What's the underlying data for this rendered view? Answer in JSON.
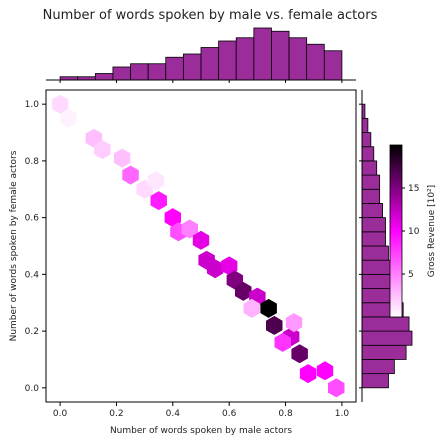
{
  "chart_data": {
    "type": "hexbin",
    "title": "Number of words spoken by male vs. female actors",
    "xlabel": "Number of words spoken by male actors",
    "ylabel": "Number of words spoken by female actors",
    "xlim": [
      -0.05,
      1.05
    ],
    "ylim": [
      -0.05,
      1.05
    ],
    "xticks": [
      "0.0",
      "0.2",
      "0.4",
      "0.6",
      "0.8",
      "1.0"
    ],
    "yticks": [
      "0.0",
      "0.2",
      "0.4",
      "0.6",
      "0.8",
      "1.0"
    ],
    "colorbar": {
      "label": "Gross Revenue [10²]",
      "range": [
        0,
        20
      ],
      "ticks": [
        "5",
        "10",
        "15"
      ]
    },
    "colors": {
      "bar": "#9b2d9b",
      "low": "#ffffff",
      "mid": "#ff00ff",
      "high": "#000000"
    },
    "hexbins": [
      {
        "x": 0.0,
        "y": 1.0,
        "value": 1.5
      },
      {
        "x": 0.03,
        "y": 0.95,
        "value": 0.5
      },
      {
        "x": 0.12,
        "y": 0.88,
        "value": 2.5
      },
      {
        "x": 0.15,
        "y": 0.84,
        "value": 2.0
      },
      {
        "x": 0.22,
        "y": 0.81,
        "value": 2.5
      },
      {
        "x": 0.25,
        "y": 0.75,
        "value": 6.0
      },
      {
        "x": 0.3,
        "y": 0.7,
        "value": 1.5
      },
      {
        "x": 0.34,
        "y": 0.73,
        "value": 1.0
      },
      {
        "x": 0.35,
        "y": 0.66,
        "value": 9.0
      },
      {
        "x": 0.4,
        "y": 0.6,
        "value": 10.0
      },
      {
        "x": 0.42,
        "y": 0.55,
        "value": 7.0
      },
      {
        "x": 0.46,
        "y": 0.56,
        "value": 5.0
      },
      {
        "x": 0.5,
        "y": 0.52,
        "value": 11.0
      },
      {
        "x": 0.52,
        "y": 0.45,
        "value": 12.0
      },
      {
        "x": 0.55,
        "y": 0.42,
        "value": 12.0
      },
      {
        "x": 0.6,
        "y": 0.43,
        "value": 11.0
      },
      {
        "x": 0.62,
        "y": 0.38,
        "value": 15.0
      },
      {
        "x": 0.65,
        "y": 0.34,
        "value": 16.0
      },
      {
        "x": 0.7,
        "y": 0.32,
        "value": 12.0
      },
      {
        "x": 0.68,
        "y": 0.28,
        "value": 3.0
      },
      {
        "x": 0.74,
        "y": 0.28,
        "value": 20.0
      },
      {
        "x": 0.76,
        "y": 0.22,
        "value": 17.0
      },
      {
        "x": 0.82,
        "y": 0.18,
        "value": 12.0
      },
      {
        "x": 0.79,
        "y": 0.16,
        "value": 8.0
      },
      {
        "x": 0.85,
        "y": 0.12,
        "value": 16.0
      },
      {
        "x": 0.88,
        "y": 0.05,
        "value": 10.0
      },
      {
        "x": 0.94,
        "y": 0.06,
        "value": 10.0
      },
      {
        "x": 0.98,
        "y": 0.0,
        "value": 7.0
      },
      {
        "x": 0.83,
        "y": 0.23,
        "value": 4.0
      }
    ],
    "top_histogram": {
      "bin_edges": [
        0.0,
        0.0625,
        0.125,
        0.1875,
        0.25,
        0.3125,
        0.375,
        0.4375,
        0.5,
        0.5625,
        0.625,
        0.6875,
        0.75,
        0.8125,
        0.875,
        0.9375,
        1.0
      ],
      "counts": [
        1,
        1,
        2,
        4,
        5,
        5,
        7,
        8,
        10,
        12,
        13,
        16,
        15,
        13,
        11,
        9
      ]
    },
    "right_histogram": {
      "bin_edges": [
        0.0,
        0.05,
        0.1,
        0.15,
        0.2,
        0.25,
        0.3,
        0.35,
        0.4,
        0.45,
        0.5,
        0.55,
        0.6,
        0.65,
        0.7,
        0.75,
        0.8,
        0.85,
        0.9,
        0.95,
        1.0
      ],
      "counts": [
        9,
        11,
        15,
        17,
        16,
        14,
        13,
        11,
        10,
        9,
        8,
        8,
        7,
        6,
        6,
        5,
        4,
        3,
        2,
        1
      ]
    }
  }
}
